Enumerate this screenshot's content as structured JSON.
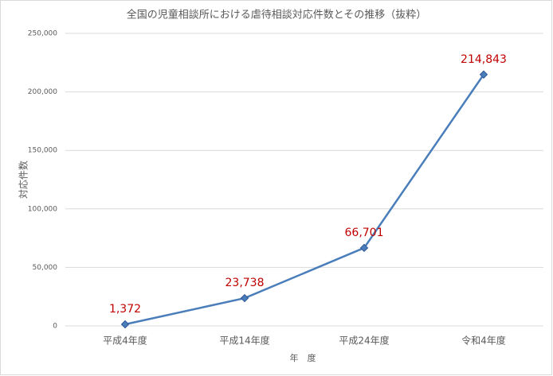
{
  "chart_data": {
    "type": "line",
    "title": "全国の児童相談所における虐待相談対応件数とその推移（抜粋）",
    "x_label": "年　度",
    "y_label": "対応件数",
    "categories": [
      "平成4年度",
      "平成14年度",
      "平成24年度",
      "令和4年度"
    ],
    "series": [
      {
        "name": "対応件数",
        "color": "#4a7ebb",
        "values": [
          1372,
          23738,
          66701,
          214843
        ],
        "value_labels": [
          "1,372",
          "23,738",
          "66,701",
          "214,843"
        ]
      }
    ],
    "ylim": [
      0,
      250000
    ],
    "yticks": [
      0,
      {
        "value": 50000,
        "label": "50,000"
      },
      {
        "value": 100000,
        "label": "100,000"
      },
      {
        "value": 150000,
        "label": "150,000"
      },
      {
        "value": 200000,
        "label": "200,000"
      },
      {
        "value": 250000,
        "label": "250,000"
      }
    ],
    "grid": true,
    "label_color": "#c00000"
  }
}
